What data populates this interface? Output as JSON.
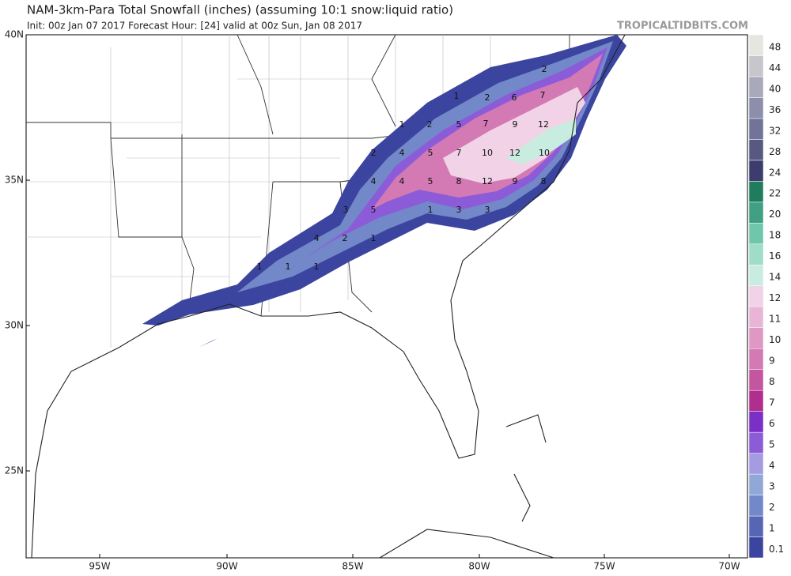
{
  "header": {
    "title": "NAM-3km-Para Total Snowfall (inches) (assuming 10:1 snow:liquid ratio)",
    "subtitle": "Init: 00z Jan 07 2017   Forecast Hour: [24]   valid at 00z Sun, Jan 08 2017",
    "site": "TROPICALTIDBITS.COM"
  },
  "map": {
    "lat_labels": [
      "40N",
      "35N",
      "30N",
      "25N"
    ],
    "lon_labels": [
      "95W",
      "90W",
      "85W",
      "80W",
      "75W",
      "70W"
    ],
    "contour_labels": [
      "2",
      "1",
      "2",
      "6",
      "7",
      "1",
      "2",
      "5",
      "7",
      "9",
      "12",
      "2",
      "4",
      "5",
      "7",
      "10",
      "12",
      "10",
      "4",
      "4",
      "5",
      "8",
      "12",
      "9",
      "8",
      "3",
      "5",
      "1",
      "3",
      "3",
      "4",
      "2",
      "1",
      "1",
      "1",
      "1"
    ]
  },
  "legend": {
    "levels": [
      {
        "label": "0.1",
        "color": "#3b45a0"
      },
      {
        "label": "1",
        "color": "#5666b5"
      },
      {
        "label": "2",
        "color": "#7388c8"
      },
      {
        "label": "3",
        "color": "#90a8d8"
      },
      {
        "label": "4",
        "color": "#a49be2"
      },
      {
        "label": "5",
        "color": "#8c5bd8"
      },
      {
        "label": "6",
        "color": "#7a2fc6"
      },
      {
        "label": "7",
        "color": "#b02e8e"
      },
      {
        "label": "8",
        "color": "#c4559f"
      },
      {
        "label": "9",
        "color": "#d379b3"
      },
      {
        "label": "10",
        "color": "#df97c4"
      },
      {
        "label": "11",
        "color": "#e8b5d6"
      },
      {
        "label": "12",
        "color": "#f1d2e7"
      },
      {
        "label": "14",
        "color": "#c8ede0"
      },
      {
        "label": "16",
        "color": "#a0ddc9"
      },
      {
        "label": "18",
        "color": "#6fc6aa"
      },
      {
        "label": "20",
        "color": "#40a083"
      },
      {
        "label": "22",
        "color": "#217b5d"
      },
      {
        "label": "24",
        "color": "#3c3d6c"
      },
      {
        "label": "28",
        "color": "#585982"
      },
      {
        "label": "32",
        "color": "#727398"
      },
      {
        "label": "36",
        "color": "#8d8eab"
      },
      {
        "label": "40",
        "color": "#a9a9bc"
      },
      {
        "label": "44",
        "color": "#c6c6cb"
      },
      {
        "label": "48",
        "color": "#e6e6e0"
      }
    ]
  }
}
